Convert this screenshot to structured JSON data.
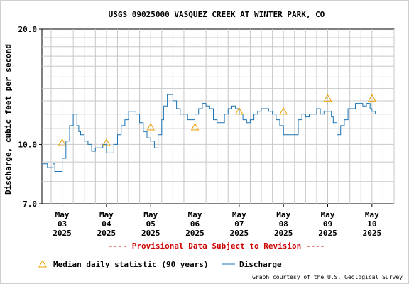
{
  "chart_data": {
    "type": "line",
    "title": "USGS 09025000 VASQUEZ CREEK AT WINTER PARK, CO",
    "ylabel": "Discharge, cubic feet per second",
    "xlabel": "",
    "y_scale": "log",
    "ylim": [
      7.0,
      20.0
    ],
    "y_ticks": [
      "7.0",
      "10.0",
      "20.0"
    ],
    "xlim": [
      "2025-05-02T13:00",
      "2025-05-10T12:00"
    ],
    "x_ticks": [
      {
        "at": "2025-05-03T00:00",
        "label": [
          "May",
          "03",
          "2025"
        ]
      },
      {
        "at": "2025-05-04T00:00",
        "label": [
          "May",
          "04",
          "2025"
        ]
      },
      {
        "at": "2025-05-05T00:00",
        "label": [
          "May",
          "05",
          "2025"
        ]
      },
      {
        "at": "2025-05-06T00:00",
        "label": [
          "May",
          "06",
          "2025"
        ]
      },
      {
        "at": "2025-05-07T00:00",
        "label": [
          "May",
          "07",
          "2025"
        ]
      },
      {
        "at": "2025-05-08T00:00",
        "label": [
          "May",
          "08",
          "2025"
        ]
      },
      {
        "at": "2025-05-09T00:00",
        "label": [
          "May",
          "09",
          "2025"
        ]
      },
      {
        "at": "2025-05-10T00:00",
        "label": [
          "May",
          "10",
          "2025"
        ]
      }
    ],
    "grid": true,
    "legend_placement": "bottom",
    "colors": {
      "discharge": "#1a73b5",
      "median": "#e8a000",
      "provisional": "#cc0000",
      "grid": "#c8c8c8"
    },
    "series": [
      {
        "name": "Discharge",
        "marker": "line",
        "x": [
          "2025-05-02T13:00",
          "2025-05-02T14:00",
          "2025-05-02T15:00",
          "2025-05-02T16:00",
          "2025-05-02T17:00",
          "2025-05-02T18:00",
          "2025-05-02T19:00",
          "2025-05-02T20:00",
          "2025-05-02T21:00",
          "2025-05-02T22:00",
          "2025-05-03T00:00",
          "2025-05-03T02:00",
          "2025-05-03T04:00",
          "2025-05-03T06:00",
          "2025-05-03T08:00",
          "2025-05-03T09:00",
          "2025-05-03T10:00",
          "2025-05-03T12:00",
          "2025-05-03T14:00",
          "2025-05-03T16:00",
          "2025-05-03T18:00",
          "2025-05-03T20:00",
          "2025-05-03T22:00",
          "2025-05-04T00:00",
          "2025-05-04T02:00",
          "2025-05-04T04:00",
          "2025-05-04T06:00",
          "2025-05-04T08:00",
          "2025-05-04T10:00",
          "2025-05-04T12:00",
          "2025-05-04T14:00",
          "2025-05-04T16:00",
          "2025-05-04T18:00",
          "2025-05-04T20:00",
          "2025-05-04T22:00",
          "2025-05-05T00:00",
          "2025-05-05T02:00",
          "2025-05-05T04:00",
          "2025-05-05T06:00",
          "2025-05-05T07:00",
          "2025-05-05T09:00",
          "2025-05-05T11:00",
          "2025-05-05T12:00",
          "2025-05-05T14:00",
          "2025-05-05T16:00",
          "2025-05-05T18:00",
          "2025-05-05T20:00",
          "2025-05-05T22:00",
          "2025-05-06T00:00",
          "2025-05-06T02:00",
          "2025-05-06T04:00",
          "2025-05-06T06:00",
          "2025-05-06T08:00",
          "2025-05-06T10:00",
          "2025-05-06T12:00",
          "2025-05-06T14:00",
          "2025-05-06T16:00",
          "2025-05-06T18:00",
          "2025-05-06T20:00",
          "2025-05-06T22:00",
          "2025-05-07T00:00",
          "2025-05-07T02:00",
          "2025-05-07T04:00",
          "2025-05-07T06:00",
          "2025-05-07T08:00",
          "2025-05-07T10:00",
          "2025-05-07T12:00",
          "2025-05-07T14:00",
          "2025-05-07T16:00",
          "2025-05-07T18:00",
          "2025-05-07T20:00",
          "2025-05-07T22:00",
          "2025-05-08T00:00",
          "2025-05-08T02:00",
          "2025-05-08T04:00",
          "2025-05-08T06:00",
          "2025-05-08T08:00",
          "2025-05-08T10:00",
          "2025-05-08T12:00",
          "2025-05-08T14:00",
          "2025-05-08T16:00",
          "2025-05-08T18:00",
          "2025-05-08T20:00",
          "2025-05-08T22:00",
          "2025-05-09T00:00",
          "2025-05-09T02:00",
          "2025-05-09T03:00",
          "2025-05-09T05:00",
          "2025-05-09T07:00",
          "2025-05-09T09:00",
          "2025-05-09T11:00",
          "2025-05-09T13:00",
          "2025-05-09T15:00",
          "2025-05-09T17:00",
          "2025-05-09T19:00",
          "2025-05-09T21:00",
          "2025-05-09T23:00",
          "2025-05-10T00:00",
          "2025-05-10T01:00",
          "2025-05-10T01:45"
        ],
        "values": [
          8.9,
          8.9,
          8.9,
          8.7,
          8.7,
          8.7,
          8.9,
          8.5,
          8.5,
          8.5,
          9.2,
          10.2,
          11.2,
          12.0,
          11.2,
          10.8,
          10.6,
          10.2,
          10.0,
          9.6,
          9.8,
          9.8,
          10.0,
          9.5,
          9.5,
          10.0,
          10.6,
          11.2,
          11.6,
          12.2,
          12.2,
          12.0,
          11.4,
          10.8,
          10.4,
          10.2,
          9.8,
          10.6,
          11.6,
          12.6,
          13.5,
          13.5,
          13.0,
          12.4,
          12.0,
          12.0,
          11.6,
          11.6,
          12.0,
          12.4,
          12.8,
          12.6,
          12.4,
          11.6,
          11.4,
          11.4,
          12.0,
          12.4,
          12.6,
          12.4,
          12.0,
          11.6,
          11.4,
          11.6,
          12.0,
          12.2,
          12.4,
          12.4,
          12.2,
          12.0,
          11.6,
          11.2,
          10.6,
          10.6,
          10.6,
          10.6,
          11.6,
          12.0,
          11.8,
          12.0,
          12.0,
          12.4,
          12.0,
          12.2,
          12.2,
          11.8,
          11.4,
          10.6,
          11.2,
          11.6,
          12.4,
          12.4,
          12.8,
          12.8,
          12.6,
          12.8,
          12.4,
          12.2,
          12.2,
          12.0
        ]
      },
      {
        "name": "Median daily statistic (90 years)",
        "marker": "triangle",
        "x": [
          "2025-05-03T00:00",
          "2025-05-04T00:00",
          "2025-05-05T00:00",
          "2025-05-06T00:00",
          "2025-05-07T00:00",
          "2025-05-08T00:00",
          "2025-05-09T00:00",
          "2025-05-10T00:00"
        ],
        "values": [
          10.1,
          10.1,
          11.1,
          11.1,
          12.2,
          12.2,
          13.2,
          13.2
        ]
      }
    ],
    "annotations": [
      "---- Provisional Data Subject to Revision ----"
    ],
    "credit": "Graph courtesy of the U.S. Geological Survey"
  }
}
